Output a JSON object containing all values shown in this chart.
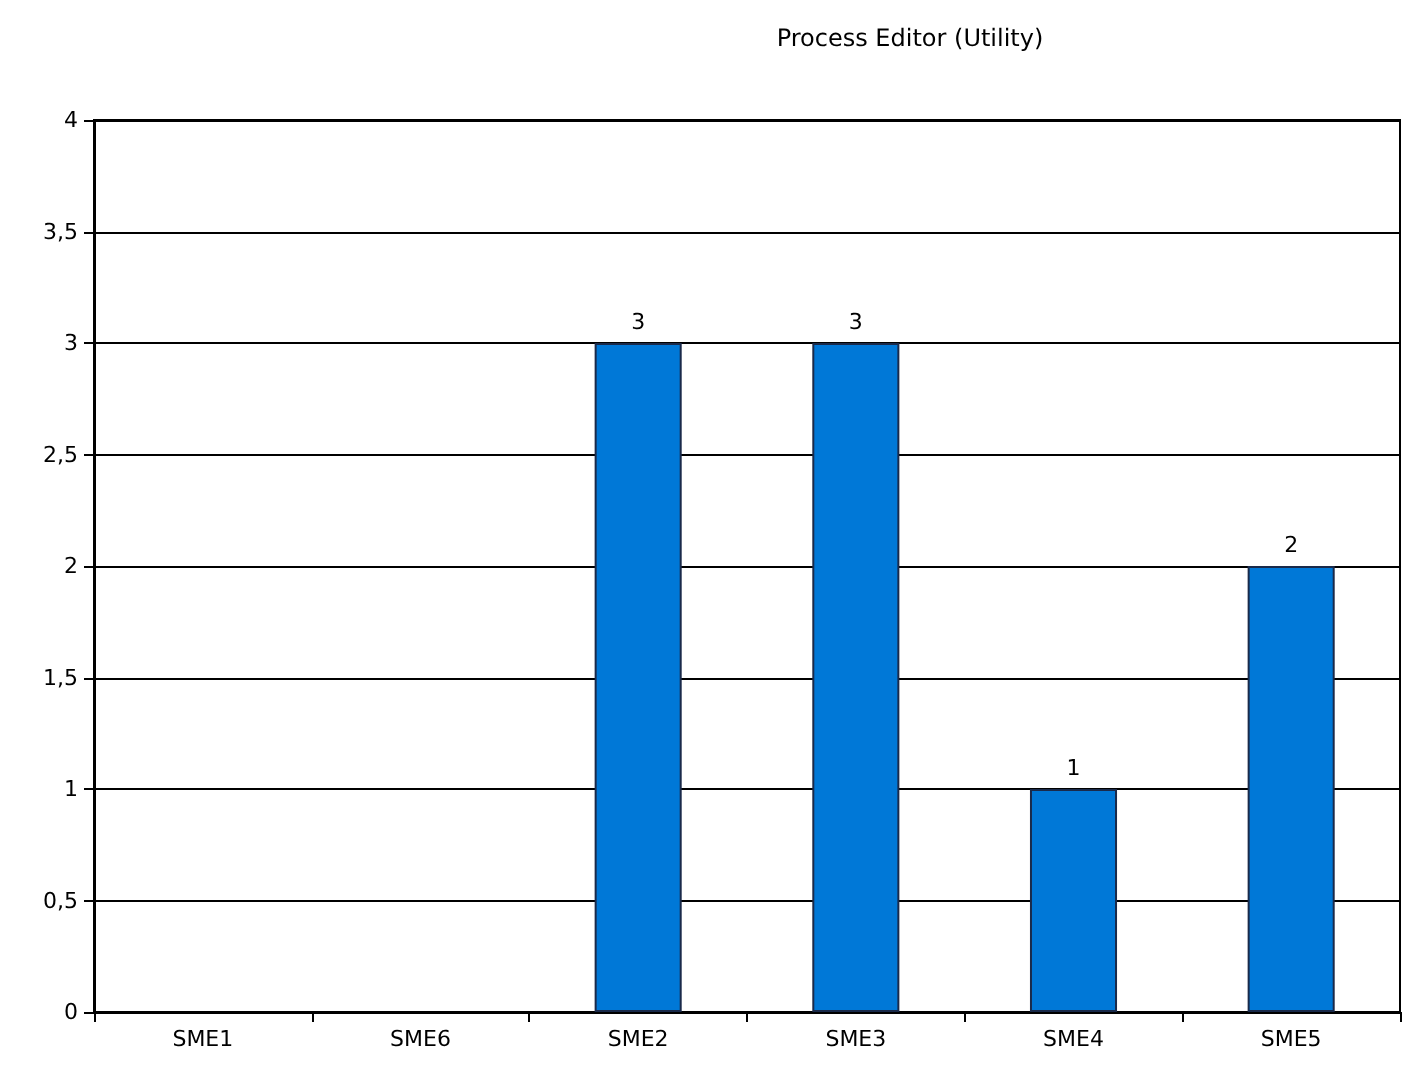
{
  "chart_data": {
    "type": "bar",
    "title": "Process Editor (Utility)",
    "categories": [
      "SME1",
      "SME6",
      "SME2",
      "SME3",
      "SME4",
      "SME5"
    ],
    "values": [
      0,
      0,
      3,
      3,
      1,
      2
    ],
    "value_labels": [
      null,
      null,
      "3",
      "3",
      "1",
      "2"
    ],
    "color": "#0078d7",
    "ylim": [
      0,
      4
    ],
    "yticks": [
      0,
      {
        "value": 0.5,
        "label": "0,5"
      },
      1,
      {
        "value": 1.5,
        "label": "1,5"
      },
      2,
      {
        "value": 2.5,
        "label": "2,5"
      },
      3,
      {
        "value": 3.5,
        "label": "3,5"
      },
      4
    ],
    "grid": "y"
  }
}
